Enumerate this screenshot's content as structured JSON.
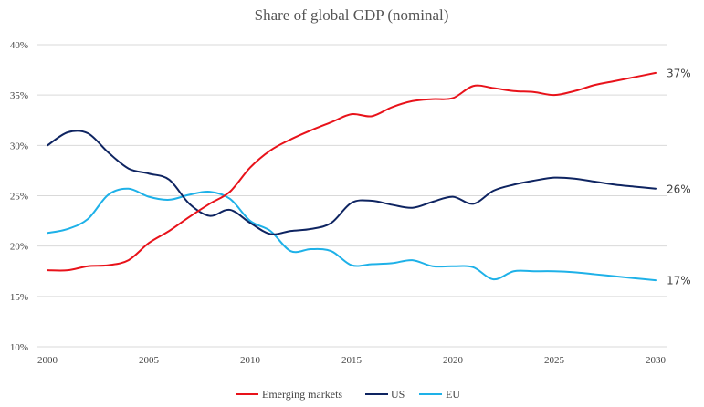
{
  "chart_data": {
    "type": "line",
    "title": "Share of global GDP (nominal)",
    "xlabel": "",
    "ylabel": "",
    "x": [
      2000,
      2001,
      2002,
      2003,
      2004,
      2005,
      2006,
      2007,
      2008,
      2009,
      2010,
      2011,
      2012,
      2013,
      2014,
      2015,
      2016,
      2017,
      2018,
      2019,
      2020,
      2021,
      2022,
      2023,
      2024,
      2025,
      2026,
      2027,
      2028,
      2029,
      2030
    ],
    "xlim": [
      2000,
      2030
    ],
    "xticks": [
      2000,
      2005,
      2010,
      2015,
      2020,
      2025,
      2030
    ],
    "xtick_labels": [
      "2000",
      "2005",
      "2010",
      "2015",
      "2020",
      "2025",
      "2030"
    ],
    "ylim": [
      10,
      40
    ],
    "yticks": [
      10,
      15,
      20,
      25,
      30,
      35,
      40
    ],
    "ytick_labels": [
      "10%",
      "15%",
      "20%",
      "25%",
      "30%",
      "35%",
      "40%"
    ],
    "grid": true,
    "legend_position": "bottom-center",
    "series": [
      {
        "name": "Emerging markets",
        "color": "#e8121a",
        "end_label": "37%",
        "values": [
          17.6,
          17.6,
          18.0,
          18.1,
          18.6,
          20.3,
          21.5,
          22.9,
          24.2,
          25.4,
          27.8,
          29.5,
          30.6,
          31.5,
          32.3,
          33.1,
          32.9,
          33.8,
          34.4,
          34.6,
          34.7,
          35.9,
          35.7,
          35.4,
          35.3,
          35.0,
          35.4,
          36.0,
          36.4,
          36.8,
          37.2
        ]
      },
      {
        "name": "US",
        "color": "#0e2461",
        "end_label": "26%",
        "values": [
          30.0,
          31.3,
          31.2,
          29.3,
          27.7,
          27.2,
          26.6,
          24.2,
          23.0,
          23.6,
          22.3,
          21.2,
          21.5,
          21.7,
          22.3,
          24.3,
          24.5,
          24.1,
          23.8,
          24.4,
          24.9,
          24.2,
          25.5,
          26.1,
          26.5,
          26.8,
          26.7,
          26.4,
          26.1,
          25.9,
          25.7
        ]
      },
      {
        "name": "EU",
        "color": "#1eb1e8",
        "end_label": "17%",
        "values": [
          21.3,
          21.7,
          22.7,
          25.1,
          25.7,
          24.9,
          24.6,
          25.1,
          25.4,
          24.7,
          22.5,
          21.5,
          19.5,
          19.7,
          19.5,
          18.1,
          18.2,
          18.3,
          18.6,
          18.0,
          18.0,
          17.9,
          16.7,
          17.5,
          17.5,
          17.5,
          17.4,
          17.2,
          17.0,
          16.8,
          16.6
        ]
      }
    ]
  }
}
